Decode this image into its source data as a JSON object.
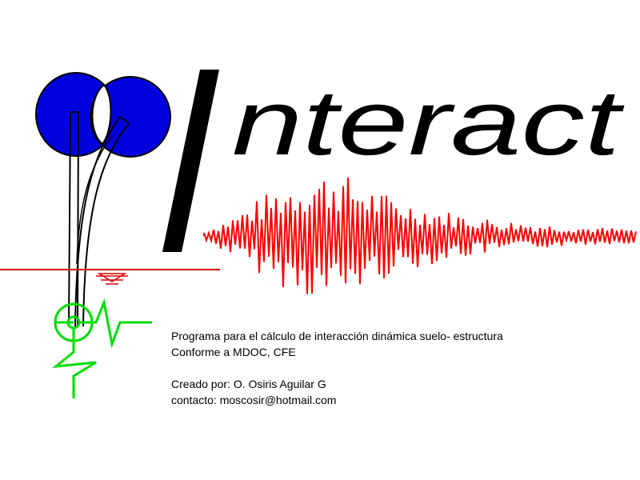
{
  "splash": {
    "title_initial": "I",
    "title_rest": "nteract",
    "description_line1": "Programa para el cálculo de interacción dinámica suelo- estructura",
    "description_line2": "Conforme a MDOC, CFE",
    "author_line": "Creado por: O. Osiris Aguilar G",
    "contact_line": "contacto: moscosir@hotmail.com"
  },
  "logo_icons": {
    "bulbs": "two-blue-circle-bulbs-icon",
    "piles": "bent-pile-icon",
    "ground": "ground-line-icon",
    "water_table": "water-table-icon",
    "springs": "spring-dashpot-icon",
    "seismogram": "seismogram-icon"
  },
  "colors": {
    "bulb_fill": "#0000dd",
    "seismogram": "#ff0000",
    "ground_line": "#dd0000",
    "springs": "#00dd00",
    "text": "#000000"
  }
}
